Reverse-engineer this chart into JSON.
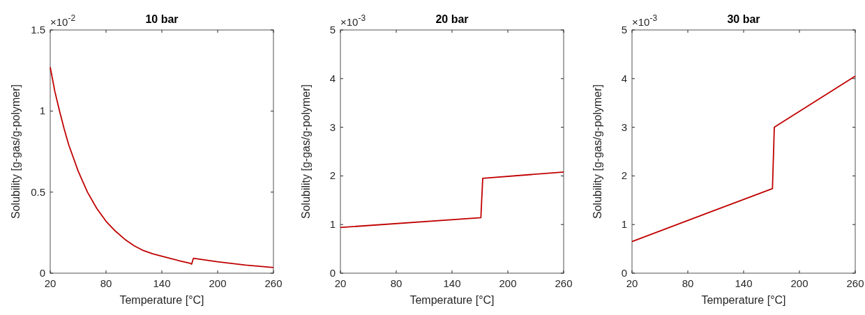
{
  "chart_data": [
    {
      "type": "line",
      "title": "10 bar",
      "xlabel": "Temperature [°C]",
      "ylabel": "Solubility [g-gas/g-polymer]",
      "annotations": [
        "×10$^{-2}$"
      ],
      "xlim": [
        20,
        260
      ],
      "xticks": [
        20,
        80,
        140,
        200,
        260
      ],
      "ylim": [
        0,
        1.5
      ],
      "yticks": [
        0,
        0.5,
        1,
        1.5
      ],
      "x": [
        20,
        25,
        30,
        35,
        40,
        50,
        60,
        70,
        80,
        90,
        100,
        110,
        120,
        130,
        140,
        150,
        160,
        170,
        172,
        174,
        200,
        230,
        260
      ],
      "series": [
        {
          "color": "#c00000",
          "values": [
            1.27,
            1.12,
            1.0,
            0.89,
            0.79,
            0.63,
            0.5,
            0.4,
            0.32,
            0.26,
            0.21,
            0.17,
            0.14,
            0.12,
            0.105,
            0.09,
            0.075,
            0.062,
            0.056,
            0.092,
            0.07,
            0.05,
            0.035
          ]
        }
      ]
    },
    {
      "type": "line",
      "title": "20 bar",
      "xlabel": "Temperature [°C]",
      "ylabel": "Solubility [g-gas/g-polymer]",
      "annotations": [
        "×10$^{-3}$"
      ],
      "xlim": [
        20,
        260
      ],
      "xticks": [
        20,
        80,
        140,
        200,
        260
      ],
      "ylim": [
        0,
        5
      ],
      "yticks": [
        0,
        1,
        2,
        3,
        4,
        5
      ],
      "x": [
        20,
        171,
        173,
        260
      ],
      "series": [
        {
          "color": "#c00000",
          "values": [
            0.94,
            1.14,
            1.95,
            2.08
          ]
        }
      ]
    },
    {
      "type": "line",
      "title": "30 bar",
      "xlabel": "Temperature [°C]",
      "ylabel": "Solubility [g-gas/g-polymer]",
      "annotations": [
        "×10$^{-3}$"
      ],
      "xlim": [
        20,
        260
      ],
      "xticks": [
        20,
        80,
        140,
        200,
        260
      ],
      "ylim": [
        0,
        5
      ],
      "yticks": [
        0,
        1,
        2,
        3,
        4,
        5
      ],
      "x": [
        20,
        171,
        173,
        260
      ],
      "series": [
        {
          "color": "#c00000",
          "values": [
            0.65,
            1.74,
            3.0,
            4.05
          ]
        }
      ]
    }
  ]
}
